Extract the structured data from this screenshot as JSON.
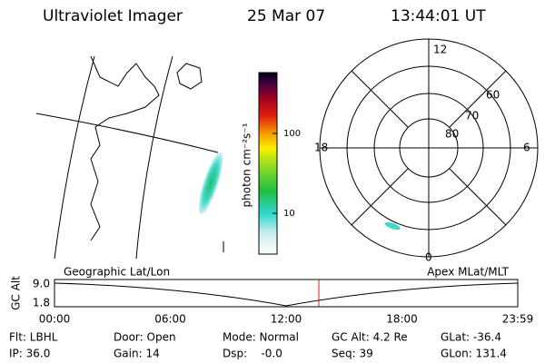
{
  "header": {
    "title": "Ultraviolet Imager",
    "date": "25 Mar 07",
    "time": "13:44:01 UT"
  },
  "colorbar": {
    "label": "photon cm⁻²s⁻¹",
    "ticks": [
      "100",
      "10"
    ]
  },
  "polar": {
    "mlt_labels": [
      "12",
      "18",
      "6",
      "0"
    ],
    "lat_labels": [
      "60",
      "70",
      "80"
    ]
  },
  "altitude_plot": {
    "left_title": "Geographic Lat/Lon",
    "right_title": "Apex MLat/MLT",
    "ylabel": "GC Alt",
    "yticks": [
      "9.0",
      "1.8"
    ],
    "xticks": [
      "00:00",
      "06:00",
      "12:00",
      "18:00",
      "23:59"
    ]
  },
  "footer": {
    "rows": [
      [
        "Flt: LBHL",
        "Door: Open",
        "Mode: Normal",
        "GC Alt: 4.2 Re",
        "GLat: -36.4"
      ],
      [
        "IP: 36.0",
        "Gain: 14",
        "Dsp:    -0.0",
        "Seq: 39",
        "GLon: 131.4"
      ]
    ]
  }
}
